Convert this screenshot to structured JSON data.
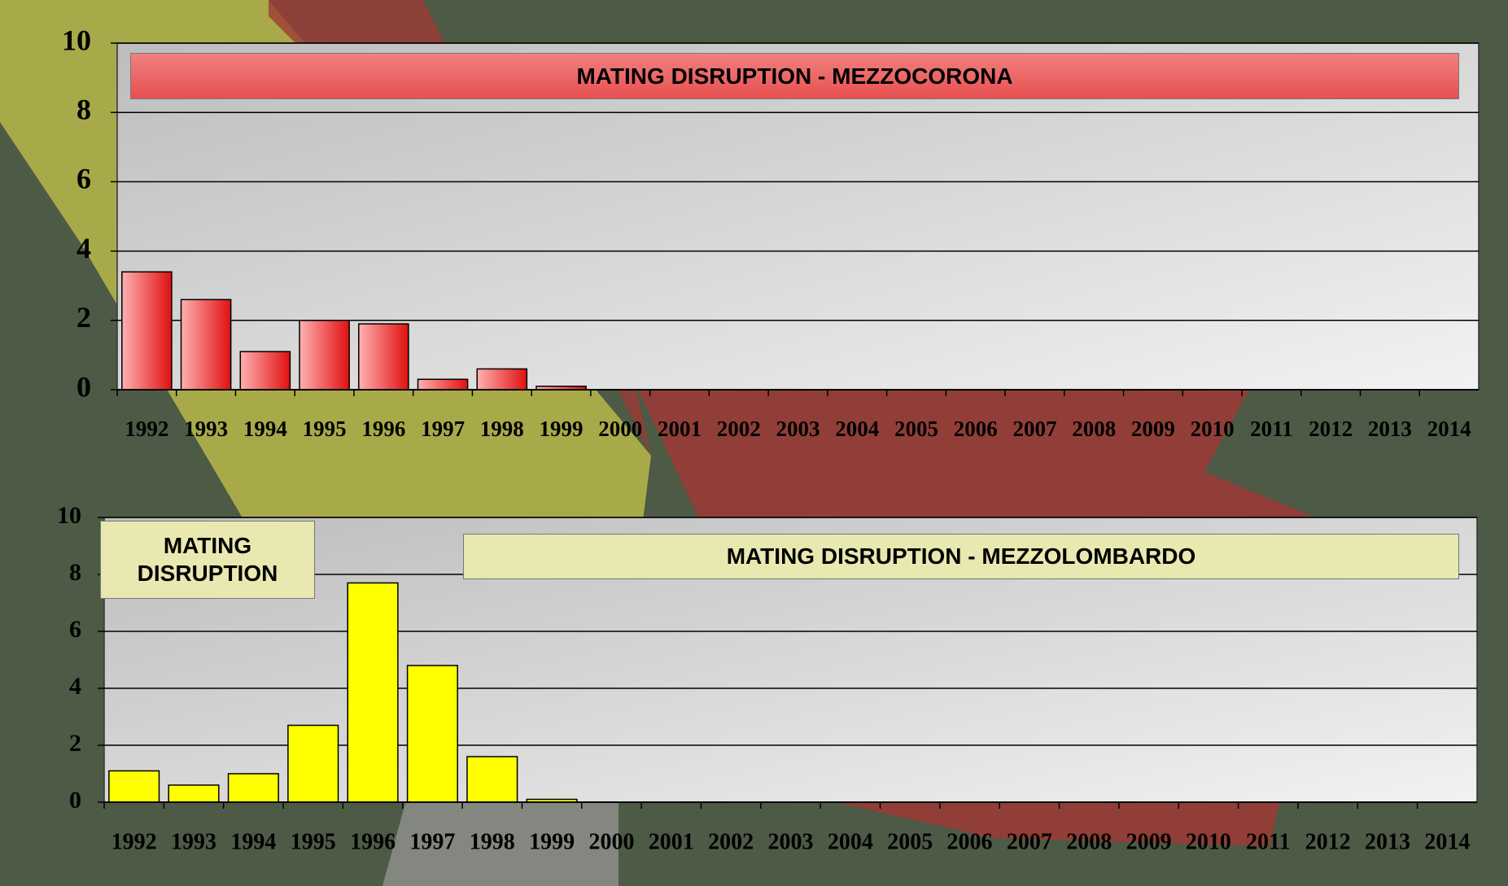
{
  "chart_data": [
    {
      "type": "bar",
      "title": "MATING DISRUPTION - MEZZOCORONA",
      "categories": [
        "1992",
        "1993",
        "1994",
        "1995",
        "1996",
        "1997",
        "1998",
        "1999",
        "2000",
        "2001",
        "2002",
        "2003",
        "2004",
        "2005",
        "2006",
        "2007",
        "2008",
        "2009",
        "2010",
        "2011",
        "2012",
        "2013",
        "2014"
      ],
      "values": [
        3.4,
        2.6,
        1.1,
        2.0,
        1.9,
        0.3,
        0.6,
        0.1,
        0,
        0,
        0,
        0,
        0,
        0,
        0,
        0,
        0,
        0,
        0,
        0,
        0,
        0,
        0
      ],
      "color": "#ff3333",
      "ylim": [
        0,
        10
      ],
      "yticks": [
        0,
        2,
        4,
        6,
        8,
        10
      ],
      "grid": true
    },
    {
      "type": "bar",
      "title": "MATING DISRUPTION - MEZZOLOMBARDO",
      "annotation": "MATING DISRUPTION",
      "categories": [
        "1992",
        "1993",
        "1994",
        "1995",
        "1996",
        "1997",
        "1998",
        "1999",
        "2000",
        "2001",
        "2002",
        "2003",
        "2004",
        "2005",
        "2006",
        "2007",
        "2008",
        "2009",
        "2010",
        "2011",
        "2012",
        "2013",
        "2014"
      ],
      "values": [
        1.1,
        0.6,
        1.0,
        2.7,
        7.7,
        4.8,
        1.6,
        0.1,
        0,
        0,
        0,
        0,
        0,
        0,
        0,
        0,
        0,
        0,
        0,
        0,
        0,
        0,
        0
      ],
      "color": "#ffff00",
      "ylim": [
        0,
        10
      ],
      "yticks": [
        0,
        2,
        4,
        6,
        8,
        10
      ],
      "grid": true
    }
  ]
}
